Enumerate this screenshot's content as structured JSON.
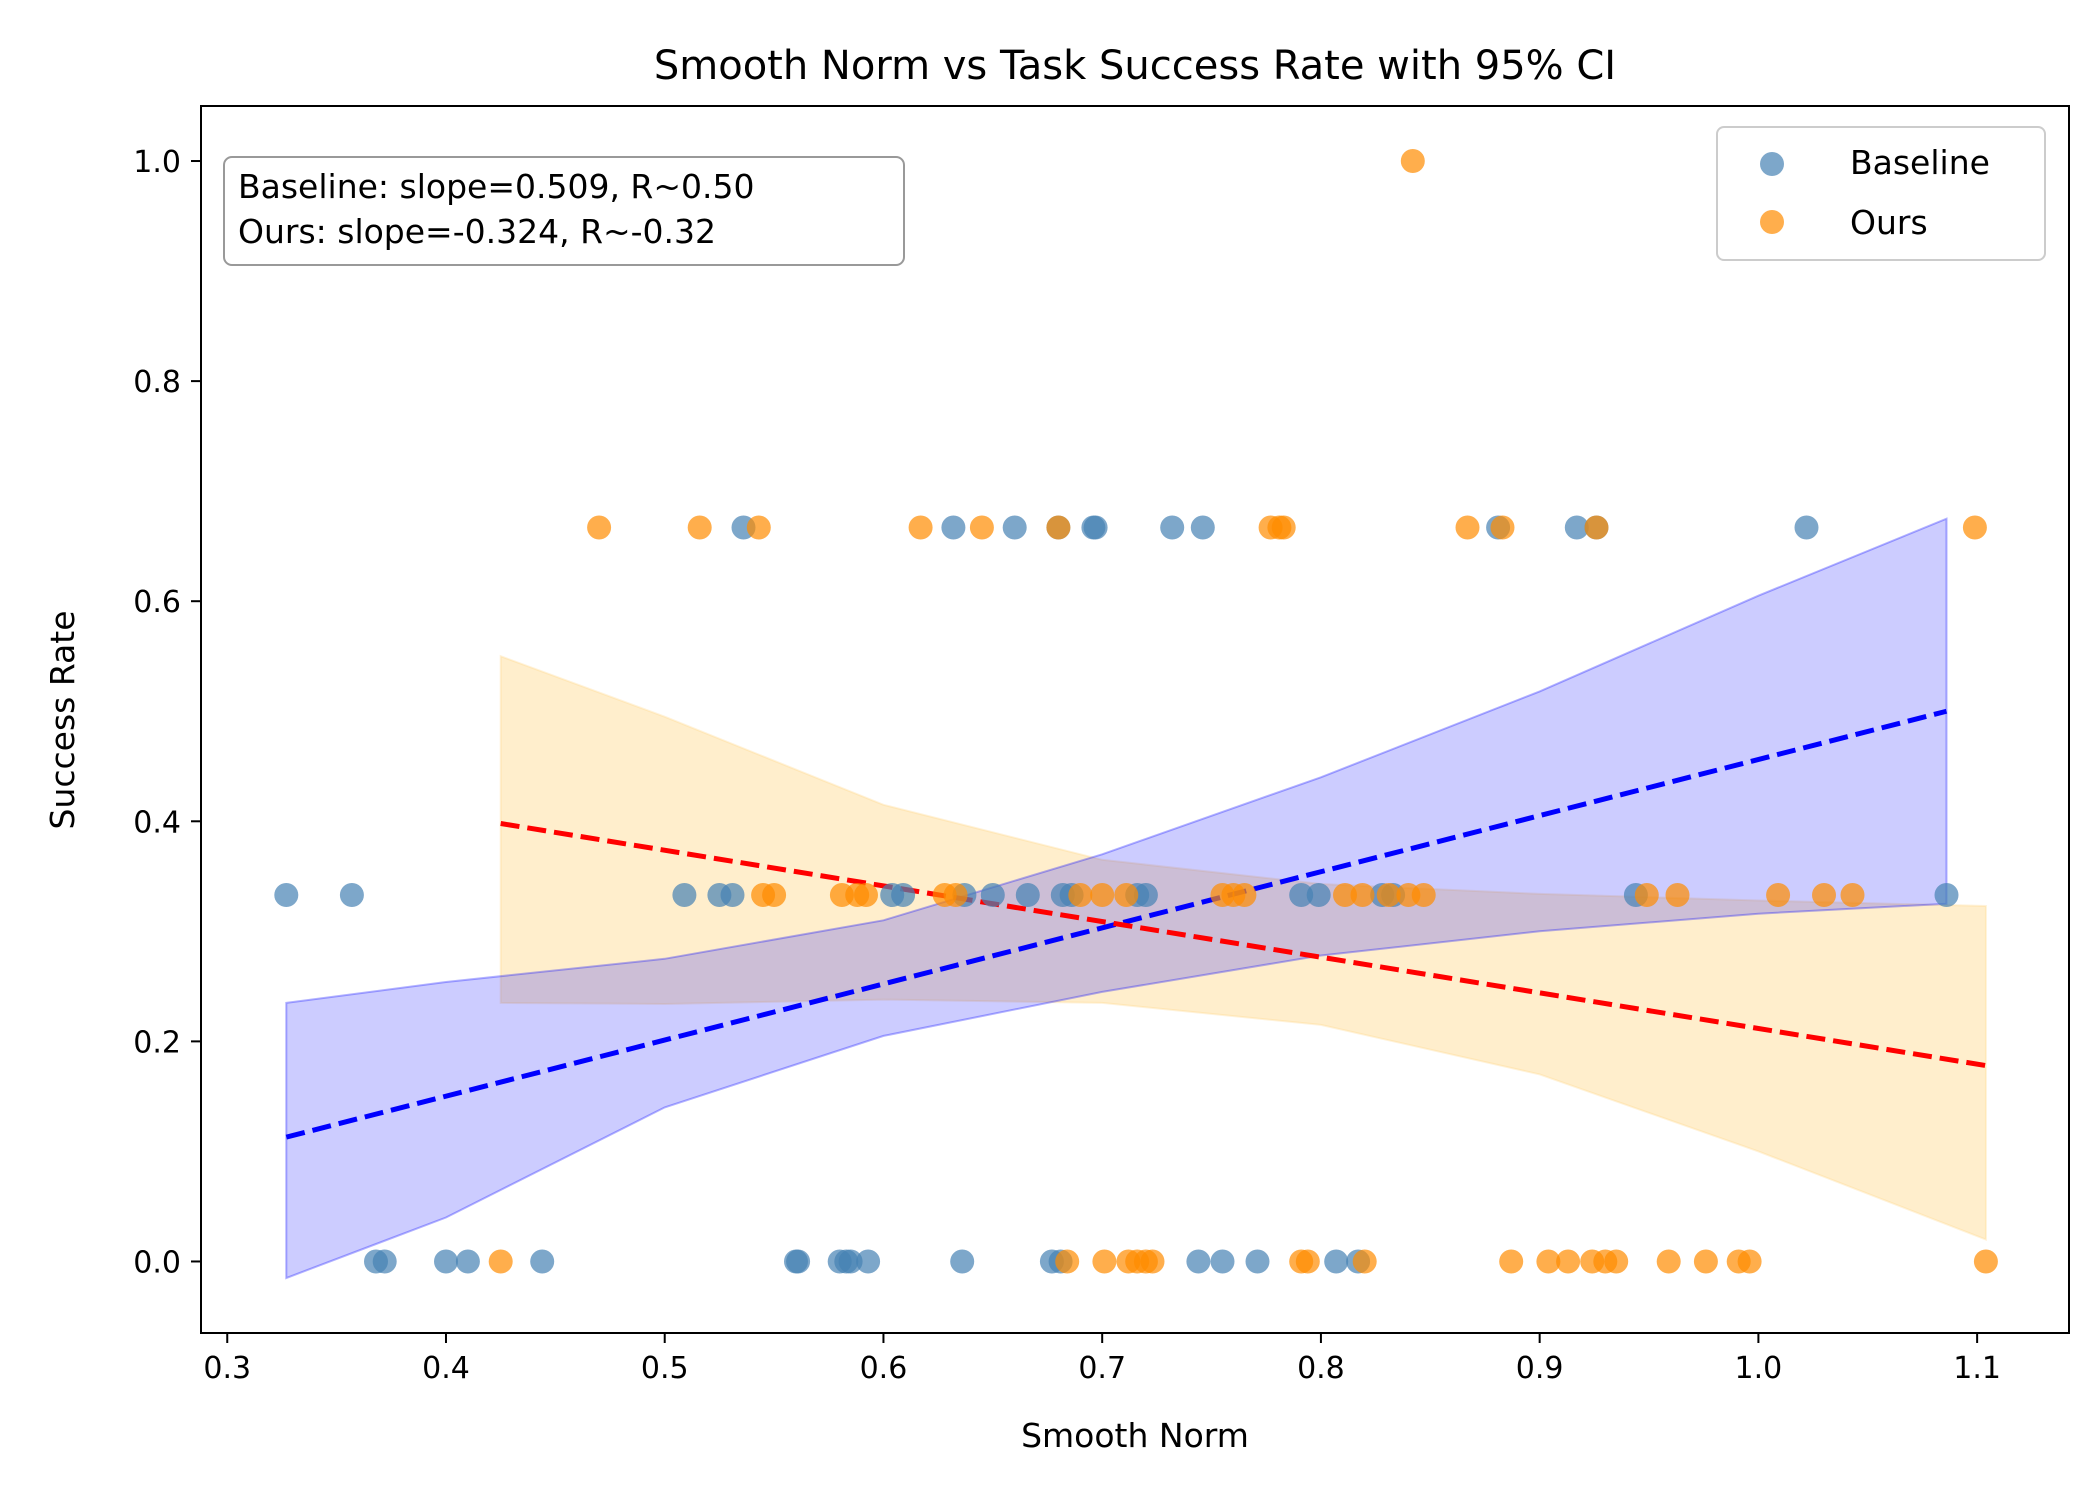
{
  "chart_data": {
    "type": "scatter",
    "title": "Smooth Norm vs Task Success Rate with 95% CI",
    "xlabel": "Smooth Norm",
    "ylabel": "Success Rate",
    "xlim": [
      0.288,
      1.142
    ],
    "ylim": [
      -0.065,
      1.05
    ],
    "xticks": [
      0.3,
      0.4,
      0.5,
      0.6,
      0.7,
      0.8,
      0.9,
      1.0,
      1.1
    ],
    "xtick_labels": [
      "0.3",
      "0.4",
      "0.5",
      "0.6",
      "0.7",
      "0.8",
      "0.9",
      "1.0",
      "1.1"
    ],
    "yticks": [
      0.0,
      0.2,
      0.4,
      0.6,
      0.8,
      1.0
    ],
    "ytick_labels": [
      "0.0",
      "0.2",
      "0.4",
      "0.6",
      "0.8",
      "1.0"
    ],
    "grid": false,
    "legend_position": "top-right",
    "annotation_lines": [
      "Baseline: slope=0.509, R~0.50",
      "Ours: slope=-0.324, R~-0.32"
    ],
    "series": [
      {
        "name": "Baseline",
        "color": "#4682b4",
        "points": [
          [
            0.327,
            0.333
          ],
          [
            0.357,
            0.333
          ],
          [
            0.368,
            0.0
          ],
          [
            0.372,
            0.0
          ],
          [
            0.4,
            0.0
          ],
          [
            0.41,
            0.0
          ],
          [
            0.444,
            0.0
          ],
          [
            0.509,
            0.333
          ],
          [
            0.525,
            0.333
          ],
          [
            0.531,
            0.333
          ],
          [
            0.536,
            0.667
          ],
          [
            0.56,
            0.0
          ],
          [
            0.561,
            0.0
          ],
          [
            0.58,
            0.0
          ],
          [
            0.583,
            0.0
          ],
          [
            0.585,
            0.0
          ],
          [
            0.593,
            0.0
          ],
          [
            0.604,
            0.333
          ],
          [
            0.609,
            0.333
          ],
          [
            0.632,
            0.667
          ],
          [
            0.636,
            0.0
          ],
          [
            0.637,
            0.333
          ],
          [
            0.65,
            0.333
          ],
          [
            0.66,
            0.667
          ],
          [
            0.666,
            0.333
          ],
          [
            0.677,
            0.0
          ],
          [
            0.68,
            0.667
          ],
          [
            0.681,
            0.0
          ],
          [
            0.682,
            0.333
          ],
          [
            0.686,
            0.333
          ],
          [
            0.696,
            0.667
          ],
          [
            0.697,
            0.667
          ],
          [
            0.716,
            0.333
          ],
          [
            0.72,
            0.333
          ],
          [
            0.732,
            0.667
          ],
          [
            0.744,
            0.0
          ],
          [
            0.746,
            0.667
          ],
          [
            0.755,
            0.0
          ],
          [
            0.771,
            0.0
          ],
          [
            0.791,
            0.333
          ],
          [
            0.799,
            0.333
          ],
          [
            0.807,
            0.0
          ],
          [
            0.817,
            0.0
          ],
          [
            0.828,
            0.333
          ],
          [
            0.833,
            0.333
          ],
          [
            0.881,
            0.667
          ],
          [
            0.917,
            0.667
          ],
          [
            0.926,
            0.667
          ],
          [
            0.944,
            0.333
          ],
          [
            1.022,
            0.667
          ],
          [
            1.086,
            0.333
          ]
        ],
        "fit": {
          "x": [
            0.327,
            1.086
          ],
          "y": [
            0.113,
            0.5
          ]
        },
        "ci": {
          "x": [
            0.327,
            0.4,
            0.5,
            0.6,
            0.7,
            0.8,
            0.9,
            1.0,
            1.086
          ],
          "lower": [
            -0.015,
            0.04,
            0.14,
            0.205,
            0.245,
            0.278,
            0.3,
            0.316,
            0.325
          ],
          "upper": [
            0.235,
            0.254,
            0.275,
            0.31,
            0.37,
            0.44,
            0.518,
            0.605,
            0.675
          ]
        },
        "fill_color": "#0000ff",
        "line_color": "#0000ff"
      },
      {
        "name": "Ours",
        "color": "#ff8c00",
        "points": [
          [
            0.425,
            0.0
          ],
          [
            0.47,
            0.667
          ],
          [
            0.516,
            0.667
          ],
          [
            0.543,
            0.667
          ],
          [
            0.545,
            0.333
          ],
          [
            0.55,
            0.333
          ],
          [
            0.581,
            0.333
          ],
          [
            0.588,
            0.333
          ],
          [
            0.592,
            0.333
          ],
          [
            0.617,
            0.667
          ],
          [
            0.628,
            0.333
          ],
          [
            0.633,
            0.333
          ],
          [
            0.645,
            0.667
          ],
          [
            0.68,
            0.667
          ],
          [
            0.684,
            0.0
          ],
          [
            0.69,
            0.333
          ],
          [
            0.7,
            0.333
          ],
          [
            0.701,
            0.0
          ],
          [
            0.711,
            0.333
          ],
          [
            0.712,
            0.0
          ],
          [
            0.716,
            0.0
          ],
          [
            0.72,
            0.0
          ],
          [
            0.723,
            0.0
          ],
          [
            0.755,
            0.333
          ],
          [
            0.76,
            0.333
          ],
          [
            0.765,
            0.333
          ],
          [
            0.777,
            0.667
          ],
          [
            0.781,
            0.667
          ],
          [
            0.783,
            0.667
          ],
          [
            0.791,
            0.0
          ],
          [
            0.794,
            0.0
          ],
          [
            0.811,
            0.333
          ],
          [
            0.819,
            0.333
          ],
          [
            0.82,
            0.0
          ],
          [
            0.831,
            0.333
          ],
          [
            0.84,
            0.333
          ],
          [
            0.842,
            1.0
          ],
          [
            0.847,
            0.333
          ],
          [
            0.867,
            0.667
          ],
          [
            0.883,
            0.667
          ],
          [
            0.887,
            0.0
          ],
          [
            0.904,
            0.0
          ],
          [
            0.913,
            0.0
          ],
          [
            0.924,
            0.0
          ],
          [
            0.926,
            0.667
          ],
          [
            0.93,
            0.0
          ],
          [
            0.935,
            0.0
          ],
          [
            0.949,
            0.333
          ],
          [
            0.959,
            0.0
          ],
          [
            0.963,
            0.333
          ],
          [
            0.976,
            0.0
          ],
          [
            0.991,
            0.0
          ],
          [
            0.996,
            0.0
          ],
          [
            1.009,
            0.333
          ],
          [
            1.03,
            0.333
          ],
          [
            1.043,
            0.333
          ],
          [
            1.099,
            0.667
          ],
          [
            1.104,
            0.0
          ]
        ],
        "fit": {
          "x": [
            0.425,
            1.104
          ],
          "y": [
            0.398,
            0.178
          ]
        },
        "ci": {
          "x": [
            0.425,
            0.5,
            0.6,
            0.7,
            0.8,
            0.9,
            1.0,
            1.104
          ],
          "lower": [
            0.235,
            0.234,
            0.238,
            0.235,
            0.215,
            0.17,
            0.1,
            0.02
          ],
          "upper": [
            0.55,
            0.495,
            0.415,
            0.365,
            0.343,
            0.334,
            0.328,
            0.323
          ]
        },
        "fill_color": "#ffd580",
        "line_color": "#ff0000"
      }
    ]
  }
}
